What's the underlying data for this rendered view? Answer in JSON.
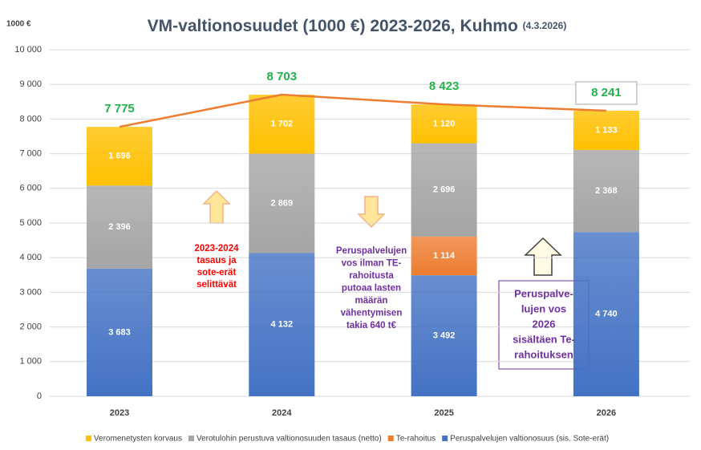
{
  "chart_data": {
    "type": "bar",
    "stacked": true,
    "title": "VM-valtionosuudet (1000 €) 2023-2026, Kuhmo",
    "subtitle": "(4.3.2026)",
    "y_axis_label": "1000 €",
    "categories": [
      "2023",
      "2024",
      "2025",
      "2026"
    ],
    "series": [
      {
        "name": "Peruspalvelujen valtionosuus (sis. Sote-erät)",
        "color": "#4472c4",
        "values": [
          3683,
          4132,
          3492,
          4740
        ],
        "value_labels": [
          "3 683",
          "4 132",
          "3 492",
          "4 740"
        ]
      },
      {
        "name": "Te-rahoitus",
        "color": "#ed7d31",
        "values": [
          null,
          null,
          1114,
          null
        ],
        "value_labels": [
          null,
          null,
          "1 114",
          null
        ]
      },
      {
        "name": "Verotulohin perustuva valtionosuuden tasaus (netto)",
        "color": "#a5a5a5",
        "values": [
          2396,
          2869,
          2696,
          2368
        ],
        "value_labels": [
          "2 396",
          "2 869",
          "2 696",
          "2 368"
        ]
      },
      {
        "name": "Veromenetysten korvaus",
        "color": "#ffc000",
        "values": [
          1696,
          1702,
          1120,
          1133
        ],
        "value_labels": [
          "1 696",
          "1 702",
          "1 120",
          "1 133"
        ]
      }
    ],
    "totals": [
      7775,
      8703,
      8423,
      8241
    ],
    "totals_labels": [
      "7 775",
      "8 703",
      "8 423",
      "8 241"
    ],
    "totals_color": "#22b14c",
    "trend_color": "#ed7d31",
    "ylim": [
      0,
      10000
    ],
    "yticks": [
      0,
      {
        "value": 1000,
        "label": "1 000"
      },
      {
        "value": 2000,
        "label": "2 000"
      },
      {
        "value": 3000,
        "label": "3 000"
      },
      {
        "value": 4000,
        "label": "4 000"
      },
      {
        "value": 5000,
        "label": "5 000"
      },
      {
        "value": 6000,
        "label": "6 000"
      },
      {
        "value": 7000,
        "label": "7 000"
      },
      {
        "value": 8000,
        "label": "8 000"
      },
      {
        "value": 9000,
        "label": "9 000"
      },
      {
        "value": 10000,
        "label": "10 000"
      }
    ],
    "grid": true,
    "legend": "bottom",
    "annotations": [
      {
        "lines": [
          "2023-2024",
          "tasaus ja",
          "sote-erät",
          "selittävät"
        ],
        "color": "#ff0000"
      },
      {
        "lines": [
          "Peruspalvelujen",
          "vos ilman TE-",
          "rahoitusta",
          "putoaa lasten",
          "määrän",
          "vähentymisen",
          "takia 640 t€"
        ],
        "color": "#7030a0"
      },
      {
        "lines": [
          "Peruspalve-",
          "lujen vos",
          "2026",
          "sisältäen Te-",
          "rahoituksen"
        ],
        "color": "#7030a0"
      }
    ]
  }
}
